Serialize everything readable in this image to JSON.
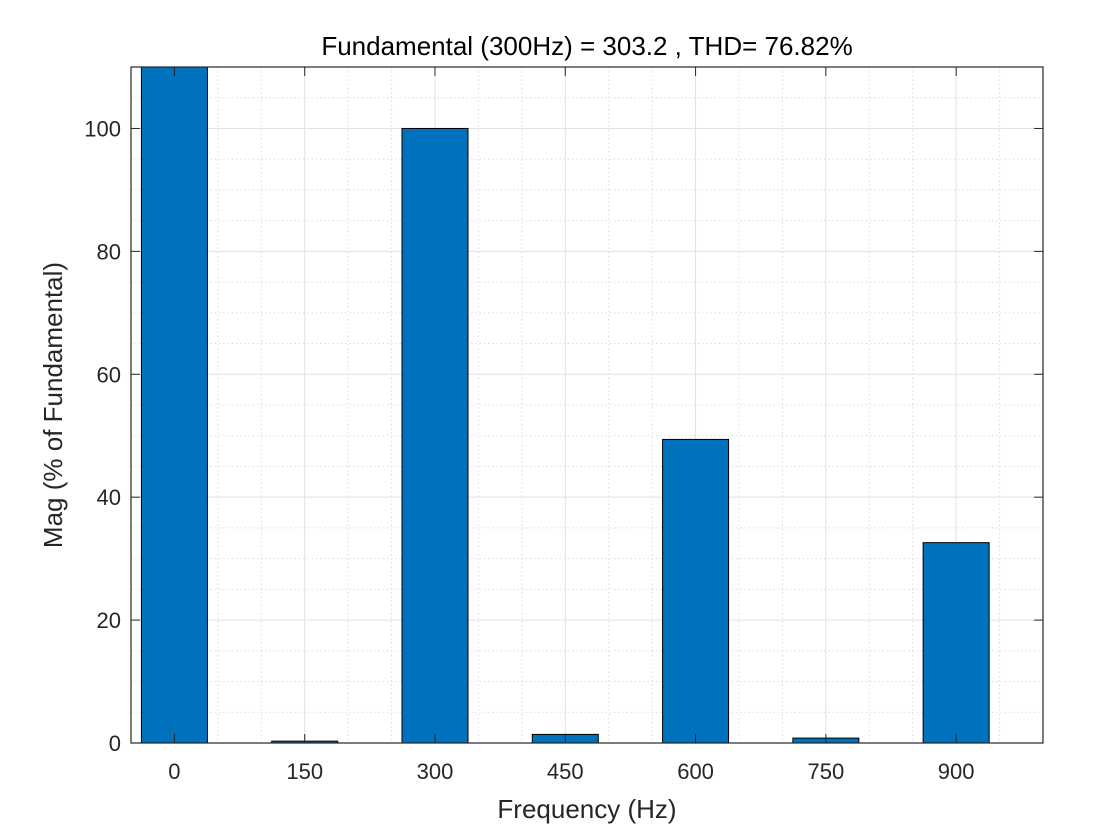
{
  "chart_data": {
    "type": "bar",
    "title": "Fundamental (300Hz) = 303.2 , THD= 76.82%",
    "xlabel": "Frequency (Hz)",
    "ylabel": "Mag (% of Fundamental)",
    "categories": [
      "0",
      "150",
      "300",
      "450",
      "600",
      "750",
      "900"
    ],
    "x": [
      0,
      150,
      300,
      450,
      600,
      750,
      900
    ],
    "values": [
      110,
      0.3,
      100,
      1.4,
      49.4,
      0.8,
      32.6
    ],
    "xlim": [
      -50,
      1000
    ],
    "ylim": [
      0,
      110
    ],
    "xticks": [
      0,
      150,
      300,
      450,
      600,
      750,
      900
    ],
    "yticks": [
      0,
      20,
      40,
      60,
      80,
      100
    ],
    "grid": true,
    "minor_grid": true,
    "bar_color": "#0072BD"
  }
}
